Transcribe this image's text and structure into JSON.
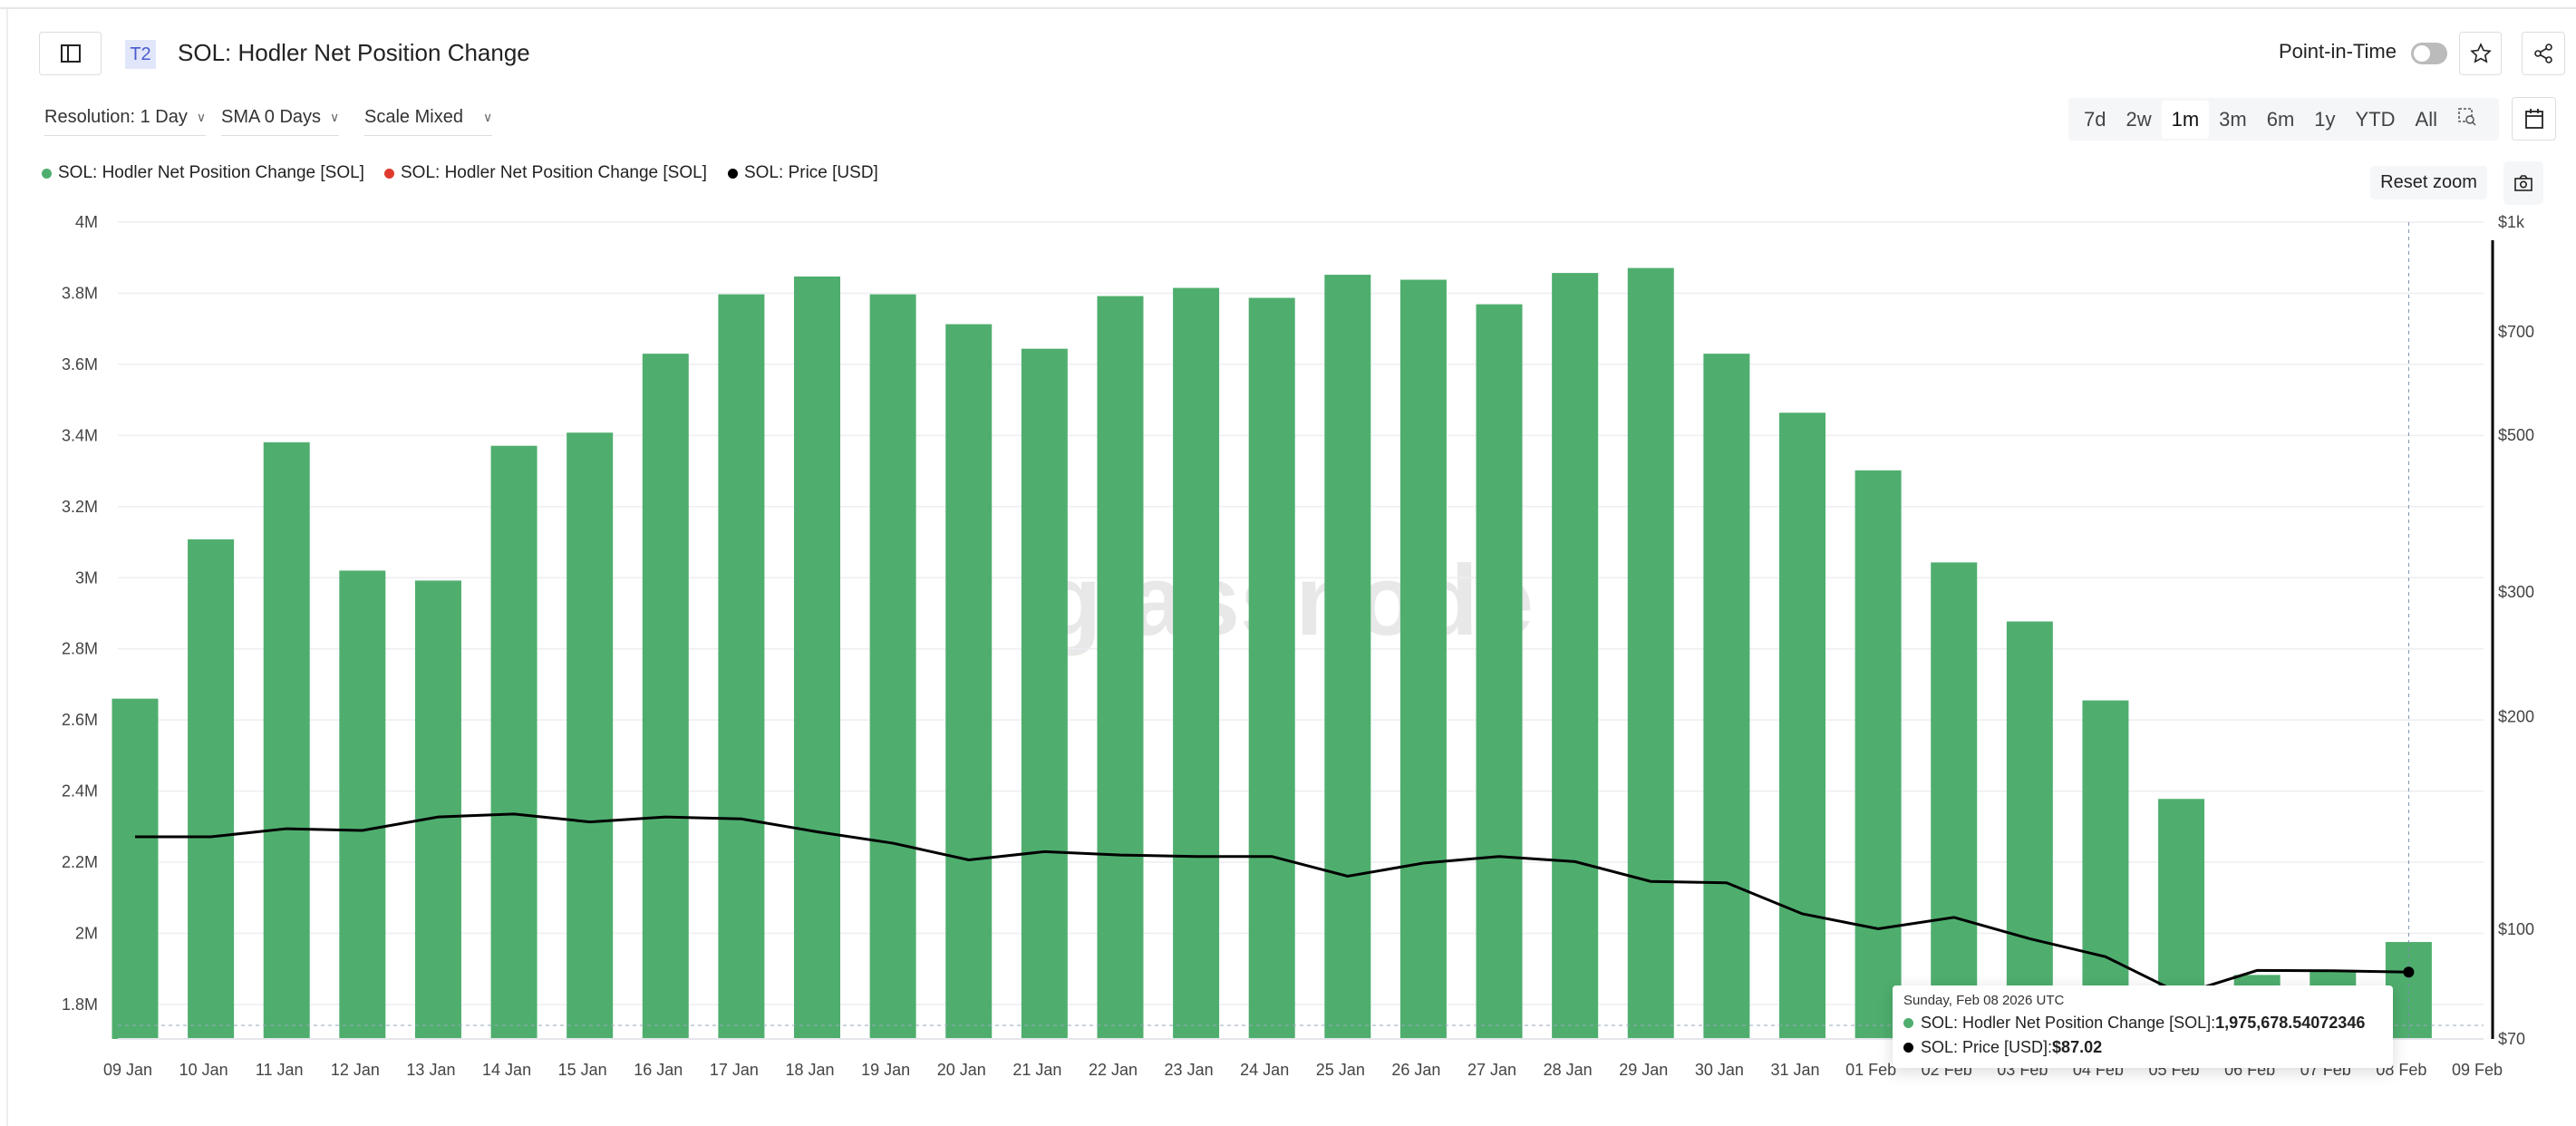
{
  "header": {
    "sidebar_toggle_icon": "sidebar-icon",
    "tier_badge": "T2",
    "title": "SOL: Hodler Net Position Change",
    "point_in_time_label": "Point-in-Time",
    "point_in_time_enabled": false,
    "star_icon": "star-icon",
    "share_icon": "share-icon"
  },
  "controls": {
    "resolution": "Resolution: 1 Day",
    "sma": "SMA 0 Days",
    "scale": "Scale Mixed"
  },
  "ranges": {
    "items": [
      "7d",
      "2w",
      "1m",
      "3m",
      "6m",
      "1y",
      "YTD",
      "All"
    ],
    "active": "1m",
    "zoom_select_icon": "zoom-select-icon",
    "calendar_icon": "calendar-icon"
  },
  "reset_zoom": "Reset zoom",
  "camera_icon": "camera-icon",
  "legend": [
    {
      "label": "SOL: Hodler Net Position Change [SOL]",
      "color": "#4fae6e"
    },
    {
      "label": "SOL: Hodler Net Position Change [SOL]",
      "color": "#e03a2e"
    },
    {
      "label": "SOL: Price [USD]",
      "color": "#000000"
    }
  ],
  "watermark": "glassnode",
  "tooltip": {
    "date": "Sunday, Feb 08 2026 UTC",
    "series1_label": "SOL: Hodler Net Position Change [SOL]: ",
    "series1_value": "1,975,678.54072346",
    "series2_label": "SOL: Price [USD]: ",
    "series2_value": "$87.02"
  },
  "chart_data": {
    "type": "bar+line",
    "categories": [
      "09 Jan",
      "10 Jan",
      "11 Jan",
      "12 Jan",
      "13 Jan",
      "14 Jan",
      "15 Jan",
      "16 Jan",
      "17 Jan",
      "18 Jan",
      "19 Jan",
      "20 Jan",
      "21 Jan",
      "22 Jan",
      "23 Jan",
      "24 Jan",
      "25 Jan",
      "26 Jan",
      "27 Jan",
      "28 Jan",
      "29 Jan",
      "30 Jan",
      "31 Jan",
      "01 Feb",
      "02 Feb",
      "03 Feb",
      "04 Feb",
      "05 Feb",
      "06 Feb",
      "07 Feb",
      "08 Feb"
    ],
    "x_tick_labels": [
      "09 Jan",
      "10 Jan",
      "11 Jan",
      "12 Jan",
      "13 Jan",
      "14 Jan",
      "15 Jan",
      "16 Jan",
      "17 Jan",
      "18 Jan",
      "19 Jan",
      "20 Jan",
      "21 Jan",
      "22 Jan",
      "23 Jan",
      "24 Jan",
      "25 Jan",
      "26 Jan",
      "27 Jan",
      "28 Jan",
      "29 Jan",
      "30 Jan",
      "31 Jan",
      "01 Feb",
      "02 Feb",
      "03 Feb",
      "04 Feb",
      "05 Feb",
      "06 Feb",
      "07 Feb",
      "08 Feb",
      "09 Feb"
    ],
    "series": [
      {
        "name": "SOL: Hodler Net Position Change [SOL]",
        "type": "bar",
        "axis": "left",
        "color": "#4fae6e",
        "values": [
          2660000,
          3108000,
          3381000,
          3020000,
          2992000,
          3371000,
          3408000,
          3630000,
          3797000,
          3847000,
          3797000,
          3713000,
          3644000,
          3792000,
          3815000,
          3787000,
          3852000,
          3838000,
          3769000,
          3857000,
          3871000,
          3630000,
          3464000,
          3302000,
          3043000,
          2877000,
          2655000,
          2378000,
          1883000,
          1892000,
          1975678.54
        ]
      },
      {
        "name": "SOL: Price [USD]",
        "type": "line",
        "axis": "right",
        "color": "#000000",
        "values": [
          135.2,
          135.2,
          138.8,
          138.0,
          144.2,
          145.6,
          141.9,
          144.2,
          143.3,
          137.4,
          132.4,
          125.4,
          128.8,
          127.4,
          126.8,
          126.8,
          118.9,
          124.1,
          126.8,
          124.7,
          116.9,
          116.4,
          105.2,
          100.2,
          104.0,
          97.0,
          91.5,
          81.0,
          87.5,
          87.4,
          87.02
        ]
      }
    ],
    "y_left": {
      "ticks": [
        "4M",
        "3.8M",
        "3.6M",
        "3.4M",
        "3.2M",
        "3M",
        "2.8M",
        "2.6M",
        "2.4M",
        "2.2M",
        "2M",
        "1.8M"
      ],
      "tick_values": [
        4000000,
        3800000,
        3600000,
        3400000,
        3200000,
        3000000,
        2800000,
        2600000,
        2400000,
        2200000,
        2000000,
        1800000
      ],
      "range": [
        1703000,
        4000000
      ]
    },
    "y_right": {
      "scale": "log",
      "ticks": [
        "$1k",
        "$700",
        "$500",
        "$300",
        "$200",
        "$100",
        "$70"
      ],
      "tick_values": [
        1000,
        700,
        500,
        300,
        200,
        100,
        70
      ],
      "range": [
        70,
        1000
      ]
    },
    "grid": true,
    "legend_position": "top-left",
    "hover_index": 30
  }
}
